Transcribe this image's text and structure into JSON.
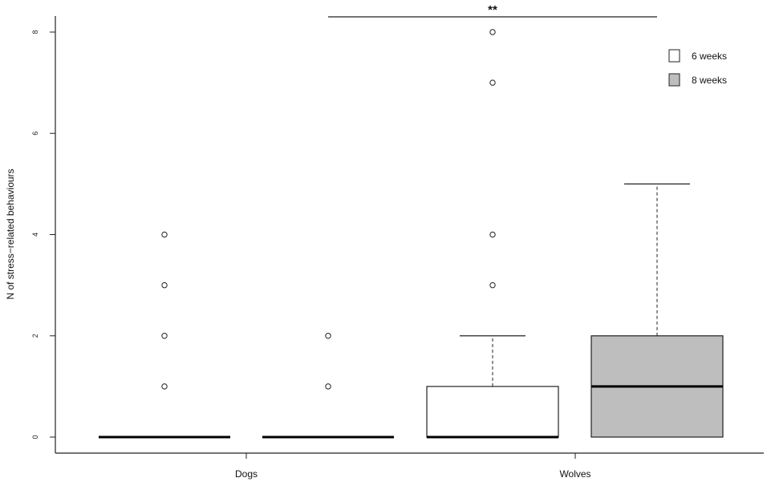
{
  "chart_data": {
    "type": "box",
    "title": "",
    "xlabel": "",
    "ylabel": "N of stress−related behaviours",
    "ylim": [
      0,
      8
    ],
    "yticks": [
      "0",
      "2",
      "4",
      "6",
      "8"
    ],
    "categories": [
      "Dogs",
      "Wolves"
    ],
    "series": [
      {
        "name": "6 weeks",
        "color": "#ffffff"
      },
      {
        "name": "8 weeks",
        "color": "#bebebe"
      }
    ],
    "boxes": [
      {
        "category": "Dogs",
        "series": "6 weeks",
        "q1": 0,
        "median": 0,
        "q3": 0,
        "whisker_low": 0,
        "whisker_high": 0,
        "outliers": [
          1,
          2,
          3,
          4
        ]
      },
      {
        "category": "Dogs",
        "series": "8 weeks",
        "q1": 0,
        "median": 0,
        "q3": 0,
        "whisker_low": 0,
        "whisker_high": 0,
        "outliers": [
          1,
          2
        ]
      },
      {
        "category": "Wolves",
        "series": "6 weeks",
        "q1": 0,
        "median": 0,
        "q3": 1,
        "whisker_low": 0,
        "whisker_high": 2,
        "outliers": [
          3,
          4,
          7,
          8
        ]
      },
      {
        "category": "Wolves",
        "series": "8 weeks",
        "q1": 0,
        "median": 1,
        "q3": 2,
        "whisker_low": 0,
        "whisker_high": 5,
        "outliers": []
      }
    ],
    "annotations": [
      {
        "text": "**",
        "from_box": 1,
        "to_box": 3
      }
    ],
    "legend_position": "top-right",
    "grid": false
  }
}
